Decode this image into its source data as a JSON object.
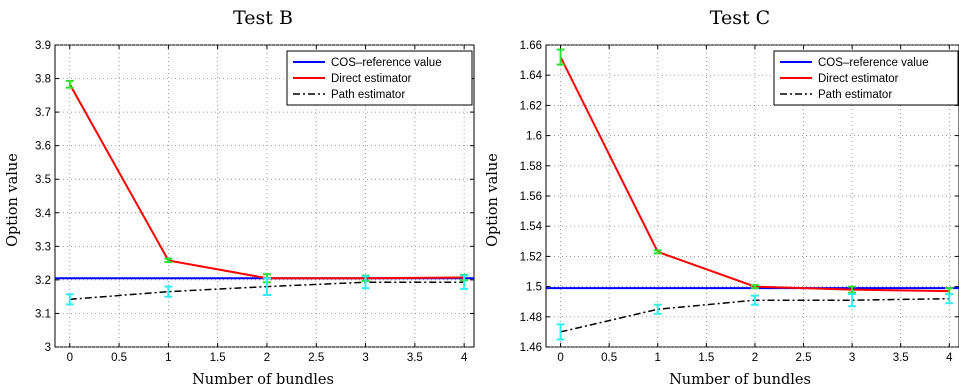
{
  "chart_data": [
    {
      "type": "line",
      "title": "Test B",
      "xlabel": "Number of bundles",
      "ylabel": "Option value",
      "xlim": [
        -0.15,
        4.1
      ],
      "ylim": [
        3.0,
        3.9
      ],
      "xticks": [
        0,
        0.5,
        1,
        1.5,
        2,
        2.5,
        3,
        3.5,
        4
      ],
      "xtick_labels": [
        "0",
        "0.5",
        "1",
        "1.5",
        "2",
        "2.5",
        "3",
        "3.5",
        "4"
      ],
      "yticks": [
        3.0,
        3.1,
        3.2,
        3.3,
        3.4,
        3.5,
        3.6,
        3.7,
        3.8,
        3.9
      ],
      "ytick_labels": [
        "3",
        "3.1",
        "3.2",
        "3.3",
        "3.4",
        "3.5",
        "3.6",
        "3.7",
        "3.8",
        "3.9"
      ],
      "grid": true,
      "legend_position": "top-right",
      "x": [
        0,
        1,
        2,
        3,
        4
      ],
      "series": [
        {
          "name": "COS–reference value",
          "color": "#0000ff",
          "style": "solid",
          "x": [
            -0.15,
            4.1
          ],
          "values": [
            3.205,
            3.205
          ]
        },
        {
          "name": "Direct estimator",
          "color": "#ff0000",
          "style": "solid",
          "values": [
            3.783,
            3.258,
            3.205,
            3.205,
            3.207
          ],
          "errors": [
            0.01,
            0.005,
            0.012,
            0.008,
            0.008
          ],
          "error_color": "#33dd33"
        },
        {
          "name": "Path estimator",
          "color": "#000000",
          "style": "dashdot",
          "values": [
            3.142,
            3.165,
            3.18,
            3.193,
            3.193
          ],
          "errors": [
            0.015,
            0.015,
            0.025,
            0.018,
            0.02
          ],
          "error_color": "#33eeee"
        }
      ]
    },
    {
      "type": "line",
      "title": "Test C",
      "xlabel": "Number of bundles",
      "ylabel": "Option value",
      "xlim": [
        -0.15,
        4.1
      ],
      "ylim": [
        1.46,
        1.66
      ],
      "xticks": [
        0,
        0.5,
        1,
        1.5,
        2,
        2.5,
        3,
        3.5,
        4
      ],
      "xtick_labels": [
        "0",
        "0.5",
        "1",
        "1.5",
        "2",
        "2.5",
        "3",
        "3.5",
        "4"
      ],
      "yticks": [
        1.46,
        1.48,
        1.5,
        1.52,
        1.54,
        1.56,
        1.58,
        1.6,
        1.62,
        1.64,
        1.66
      ],
      "ytick_labels": [
        "1.46",
        "1.48",
        "1.5",
        "1.52",
        "1.54",
        "1.56",
        "1.58",
        "1.6",
        "1.62",
        "1.64",
        "1.66"
      ],
      "grid": true,
      "legend_position": "top-right",
      "x": [
        0,
        1,
        2,
        3,
        4
      ],
      "series": [
        {
          "name": "COS–reference value",
          "color": "#0000ff",
          "style": "solid",
          "x": [
            -0.15,
            4.1
          ],
          "values": [
            1.499,
            1.499
          ]
        },
        {
          "name": "Direct estimator",
          "color": "#ff0000",
          "style": "solid",
          "values": [
            1.652,
            1.523,
            1.5,
            1.498,
            1.497
          ],
          "errors": [
            0.005,
            0.001,
            0.001,
            0.002,
            0.002
          ],
          "error_color": "#33dd33"
        },
        {
          "name": "Path estimator",
          "color": "#000000",
          "style": "dashdot",
          "values": [
            1.47,
            1.485,
            1.491,
            1.491,
            1.492
          ],
          "errors": [
            0.005,
            0.003,
            0.003,
            0.004,
            0.003
          ],
          "error_color": "#33eeee"
        }
      ]
    }
  ]
}
